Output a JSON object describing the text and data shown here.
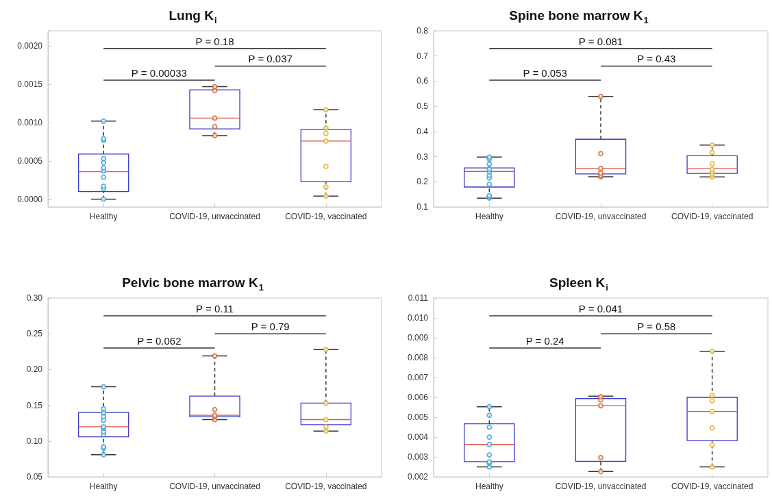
{
  "chart_data": [
    {
      "type": "box",
      "title": "Lung K$_{i}$",
      "categories": [
        "Healthy",
        "COVID-19, unvaccinated",
        "COVID-19, vaccinated"
      ],
      "ylim": [
        -0.0001,
        0.0022
      ],
      "yticks": [
        {
          "value": 0,
          "label": "0.0000"
        },
        {
          "value": 0.0005,
          "label": "0.0005"
        },
        {
          "value": 0.001,
          "label": "0.0010"
        },
        {
          "value": 0.0015,
          "label": "0.0015"
        },
        {
          "value": 0.002,
          "label": "0.0020"
        }
      ],
      "grid": false,
      "marker": "circle",
      "series": [
        {
          "type": "box",
          "color": "#3b3bc8",
          "boxes": [
            {
              "low": 0,
              "q1": 0.0001,
              "median": 0.00036,
              "q3": 0.00059,
              "high": 0.00102
            },
            {
              "low": 0.00083,
              "q1": 0.00092,
              "median": 0.00106,
              "q3": 0.00143,
              "high": 0.00147
            },
            {
              "low": 4e-05,
              "q1": 0.00023,
              "median": 0.00076,
              "q3": 0.00091,
              "high": 0.00117
            }
          ]
        },
        {
          "type": "scatter",
          "color": "#3aa2d4",
          "x": [
            "Healthy",
            "Healthy",
            "Healthy",
            "Healthy",
            "Healthy",
            "Healthy",
            "Healthy",
            "Healthy",
            "Healthy",
            "Healthy",
            "Healthy"
          ],
          "values": [
            0,
            0.00014,
            0.00017,
            0.00029,
            0.00037,
            0.00041,
            0.00048,
            0.00053,
            0.00077,
            0.00079,
            0.00102
          ]
        },
        {
          "type": "scatter",
          "color": "#d2652f",
          "x": [
            "COVID-19, unvaccinated",
            "COVID-19, unvaccinated",
            "COVID-19, unvaccinated",
            "COVID-19, unvaccinated",
            "COVID-19, unvaccinated"
          ],
          "values": [
            0.00083,
            0.00095,
            0.00106,
            0.00142,
            0.00147
          ]
        },
        {
          "type": "scatter",
          "color": "#e0b030",
          "x": [
            "COVID-19, vaccinated",
            "COVID-19, vaccinated",
            "COVID-19, vaccinated",
            "COVID-19, vaccinated",
            "COVID-19, vaccinated",
            "COVID-19, vaccinated",
            "COVID-19, vaccinated"
          ],
          "values": [
            4e-05,
            0.00016,
            0.00043,
            0.00076,
            0.00086,
            0.00093,
            0.00117
          ]
        }
      ],
      "annotations": [
        "P = 0.18",
        "P = 0.037",
        "P = 0.00033"
      ]
    },
    {
      "type": "box",
      "title": "Spine bone marrow K$_{1}$",
      "categories": [
        "Healthy",
        "COVID-19, unvaccinated",
        "COVID-19, vaccinated"
      ],
      "ylim": [
        0.1,
        0.8
      ],
      "yticks": [
        0.1,
        0.2,
        0.3,
        0.4,
        0.5,
        0.6,
        0.7,
        0.8
      ],
      "grid": false,
      "marker": "circle",
      "series": [
        {
          "type": "box",
          "color": "#3b3bc8",
          "boxes": [
            {
              "low": 0.135,
              "q1": 0.179,
              "median": 0.241,
              "q3": 0.255,
              "high": 0.298
            },
            {
              "low": 0.22,
              "q1": 0.231,
              "median": 0.253,
              "q3": 0.369,
              "high": 0.539
            },
            {
              "low": 0.219,
              "q1": 0.233,
              "median": 0.252,
              "q3": 0.303,
              "high": 0.346
            }
          ]
        },
        {
          "type": "scatter",
          "color": "#3aa2d4",
          "x": [
            "Healthy",
            "Healthy",
            "Healthy",
            "Healthy",
            "Healthy",
            "Healthy",
            "Healthy",
            "Healthy",
            "Healthy",
            "Healthy",
            "Healthy"
          ],
          "values": [
            0.135,
            0.14,
            0.145,
            0.19,
            0.215,
            0.225,
            0.24,
            0.25,
            0.27,
            0.29,
            0.298
          ]
        },
        {
          "type": "scatter",
          "color": "#d2652f",
          "x": [
            "COVID-19, unvaccinated",
            "COVID-19, unvaccinated",
            "COVID-19, unvaccinated",
            "COVID-19, unvaccinated",
            "COVID-19, unvaccinated",
            "COVID-19, unvaccinated"
          ],
          "values": [
            0.22,
            0.225,
            0.235,
            0.253,
            0.312,
            0.539
          ]
        },
        {
          "type": "scatter",
          "color": "#e0b030",
          "x": [
            "COVID-19, vaccinated",
            "COVID-19, vaccinated",
            "COVID-19, vaccinated",
            "COVID-19, vaccinated",
            "COVID-19, vaccinated",
            "COVID-19, vaccinated",
            "COVID-19, vaccinated"
          ],
          "values": [
            0.219,
            0.23,
            0.24,
            0.25,
            0.272,
            0.316,
            0.346
          ]
        }
      ],
      "annotations": [
        "P = 0.081",
        "P = 0.43",
        "P = 0.053"
      ]
    },
    {
      "type": "box",
      "title": "Pelvic bone marrow K$_{1}$",
      "categories": [
        "Healthy",
        "COVID-19, unvaccinated",
        "COVID-19, vaccinated"
      ],
      "ylim": [
        0.05,
        0.3
      ],
      "yticks": [
        {
          "value": 0.05,
          "label": "0.05"
        },
        {
          "value": 0.1,
          "label": "0.10"
        },
        {
          "value": 0.15,
          "label": "0.15"
        },
        {
          "value": 0.2,
          "label": "0.20"
        },
        {
          "value": 0.25,
          "label": "0.25"
        },
        {
          "value": 0.3,
          "label": "0.30"
        }
      ],
      "grid": false,
      "marker": "circle",
      "series": [
        {
          "type": "box",
          "color": "#3b3bc8",
          "boxes": [
            {
              "low": 0.081,
              "q1": 0.106,
              "median": 0.12,
              "q3": 0.14,
              "high": 0.176
            },
            {
              "low": 0.13,
              "q1": 0.134,
              "median": 0.136,
              "q3": 0.163,
              "high": 0.219
            },
            {
              "low": 0.114,
              "q1": 0.123,
              "median": 0.13,
              "q3": 0.153,
              "high": 0.228
            }
          ]
        },
        {
          "type": "scatter",
          "color": "#3aa2d4",
          "x": [
            "Healthy",
            "Healthy",
            "Healthy",
            "Healthy",
            "Healthy",
            "Healthy",
            "Healthy",
            "Healthy",
            "Healthy",
            "Healthy",
            "Healthy",
            "Healthy"
          ],
          "values": [
            0.081,
            0.09,
            0.092,
            0.109,
            0.113,
            0.118,
            0.12,
            0.129,
            0.134,
            0.14,
            0.145,
            0.176
          ]
        },
        {
          "type": "scatter",
          "color": "#d2652f",
          "x": [
            "COVID-19, unvaccinated",
            "COVID-19, unvaccinated",
            "COVID-19, unvaccinated",
            "COVID-19, unvaccinated",
            "COVID-19, unvaccinated"
          ],
          "values": [
            0.13,
            0.134,
            0.136,
            0.144,
            0.219
          ]
        },
        {
          "type": "scatter",
          "color": "#e0b030",
          "x": [
            "COVID-19, vaccinated",
            "COVID-19, vaccinated",
            "COVID-19, vaccinated",
            "COVID-19, vaccinated",
            "COVID-19, vaccinated"
          ],
          "values": [
            0.114,
            0.12,
            0.13,
            0.153,
            0.228
          ]
        }
      ],
      "annotations": [
        "P = 0.11",
        "P = 0.79",
        "P = 0.062"
      ]
    },
    {
      "type": "box",
      "title": "Spleen K$_{i}$",
      "categories": [
        "Healthy",
        "COVID-19, unvaccinated",
        "COVID-19, vaccinated"
      ],
      "ylim": [
        0.002,
        0.011
      ],
      "yticks": [
        {
          "value": 0.002,
          "label": "0.002"
        },
        {
          "value": 0.003,
          "label": "0.003"
        },
        {
          "value": 0.004,
          "label": "0.004"
        },
        {
          "value": 0.005,
          "label": "0.005"
        },
        {
          "value": 0.006,
          "label": "0.006"
        },
        {
          "value": 0.007,
          "label": "0.007"
        },
        {
          "value": 0.008,
          "label": "0.008"
        },
        {
          "value": 0.009,
          "label": "0.009"
        },
        {
          "value": 0.01,
          "label": "0.010"
        },
        {
          "value": 0.011,
          "label": "0.011"
        }
      ],
      "grid": false,
      "marker": "circle",
      "series": [
        {
          "type": "box",
          "color": "#3b3bc8",
          "boxes": [
            {
              "low": 0.0025,
              "q1": 0.00276,
              "median": 0.00363,
              "q3": 0.00467,
              "high": 0.00553
            },
            {
              "low": 0.00227,
              "q1": 0.00278,
              "median": 0.00558,
              "q3": 0.00594,
              "high": 0.00606
            },
            {
              "low": 0.0025,
              "q1": 0.00382,
              "median": 0.00529,
              "q3": 0.006,
              "high": 0.00832
            }
          ]
        },
        {
          "type": "scatter",
          "color": "#3aa2d4",
          "x": [
            "Healthy",
            "Healthy",
            "Healthy",
            "Healthy",
            "Healthy",
            "Healthy",
            "Healthy",
            "Healthy",
            "Healthy"
          ],
          "values": [
            0.0025,
            0.0027,
            0.00275,
            0.0031,
            0.00363,
            0.004,
            0.0045,
            0.0051,
            0.00553
          ]
        },
        {
          "type": "scatter",
          "color": "#d2652f",
          "x": [
            "COVID-19, unvaccinated",
            "COVID-19, unvaccinated",
            "COVID-19, unvaccinated",
            "COVID-19, unvaccinated",
            "COVID-19, unvaccinated"
          ],
          "values": [
            0.00227,
            0.00297,
            0.00558,
            0.00588,
            0.00603
          ]
        },
        {
          "type": "scatter",
          "color": "#e0b030",
          "x": [
            "COVID-19, vaccinated",
            "COVID-19, vaccinated",
            "COVID-19, vaccinated",
            "COVID-19, vaccinated",
            "COVID-19, vaccinated",
            "COVID-19, vaccinated",
            "COVID-19, vaccinated"
          ],
          "values": [
            0.0025,
            0.0036,
            0.00447,
            0.00529,
            0.00583,
            0.0061,
            0.00832
          ]
        }
      ],
      "annotations": [
        "P = 0.041",
        "P = 0.58",
        "P = 0.24"
      ]
    }
  ]
}
